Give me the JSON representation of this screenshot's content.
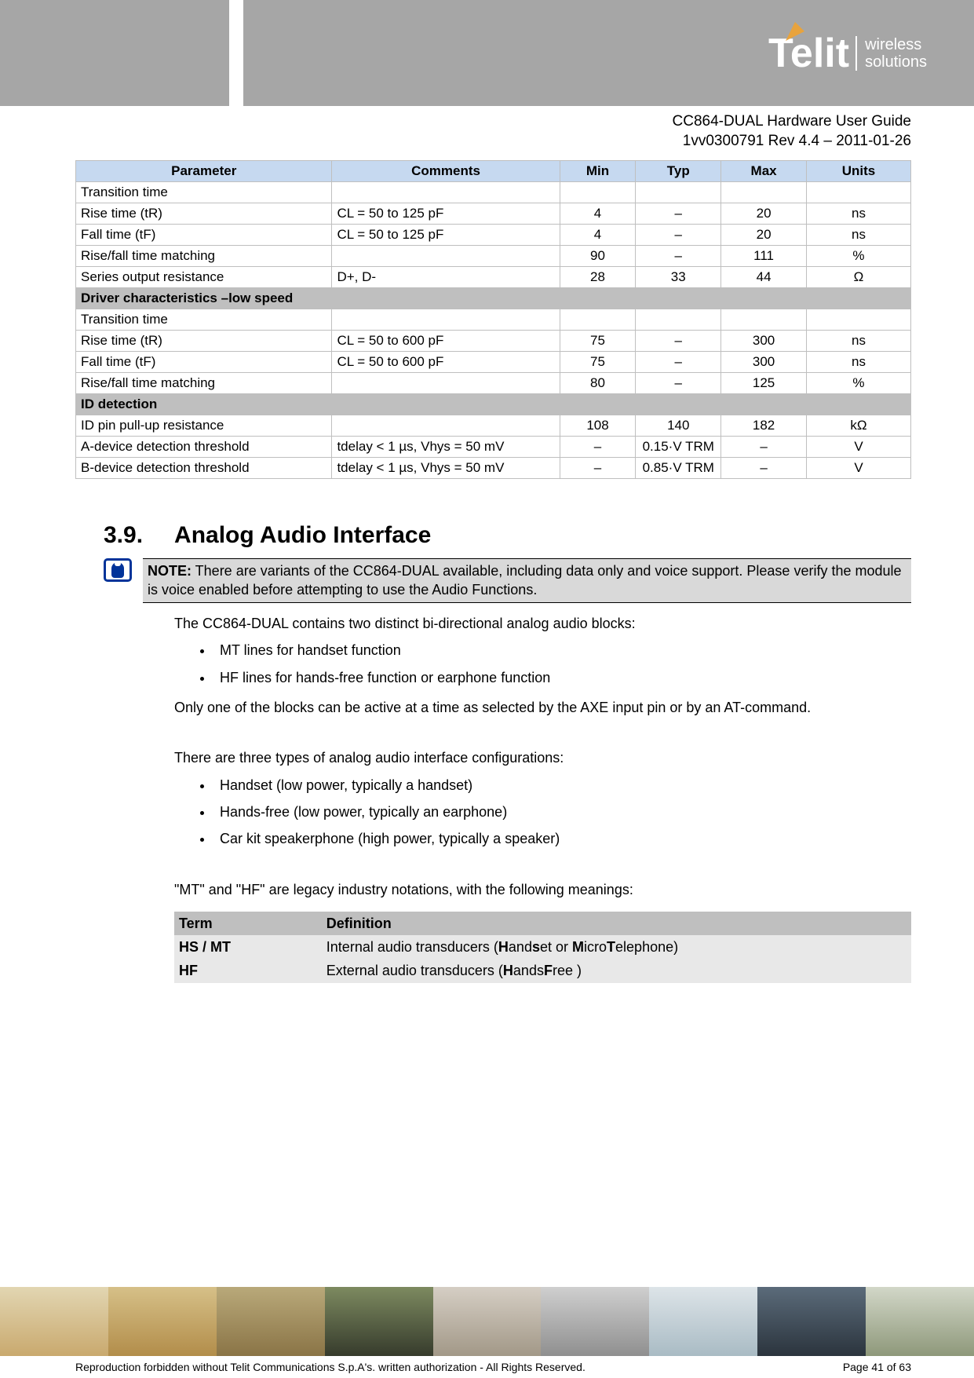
{
  "header": {
    "logo_main": "Telit",
    "logo_sub_line1": "wireless",
    "logo_sub_line2": "solutions",
    "doc_title": "CC864-DUAL Hardware User Guide",
    "doc_rev": "1vv0300791 Rev 4.4 – 2011-01-26"
  },
  "table": {
    "columns": [
      "Parameter",
      "Comments",
      "Min",
      "Typ",
      "Max",
      "Units"
    ],
    "rows": [
      {
        "type": "data",
        "cells": [
          "Transition time",
          "",
          "",
          "",
          "",
          ""
        ]
      },
      {
        "type": "data",
        "cells": [
          "Rise time (tR)",
          "CL = 50 to 125 pF",
          "4",
          "–",
          "20",
          "ns"
        ]
      },
      {
        "type": "data",
        "cells": [
          "Fall time (tF)",
          "CL = 50 to 125 pF",
          "4",
          "–",
          "20",
          "ns"
        ]
      },
      {
        "type": "data",
        "cells": [
          "Rise/fall time matching",
          "",
          "90",
          "–",
          "111",
          "%"
        ]
      },
      {
        "type": "data",
        "cells": [
          "Series output resistance",
          "D+, D-",
          "28",
          "33",
          "44",
          "Ω"
        ]
      },
      {
        "type": "section",
        "label": "Driver characteristics –low speed"
      },
      {
        "type": "data",
        "cells": [
          "Transition time",
          "",
          "",
          "",
          "",
          ""
        ]
      },
      {
        "type": "data",
        "cells": [
          "Rise time (tR)",
          "CL = 50 to 600 pF",
          "75",
          "–",
          "300",
          "ns"
        ]
      },
      {
        "type": "data",
        "cells": [
          "Fall time (tF)",
          "CL = 50 to 600 pF",
          "75",
          "–",
          "300",
          "ns"
        ]
      },
      {
        "type": "data",
        "cells": [
          "Rise/fall time matching",
          "",
          "80",
          "–",
          "125",
          "%"
        ]
      },
      {
        "type": "section",
        "label": "ID detection"
      },
      {
        "type": "data",
        "cells": [
          "ID pin pull-up resistance",
          "",
          "108",
          "140",
          "182",
          "kΩ"
        ]
      },
      {
        "type": "data",
        "cells": [
          "A-device detection threshold",
          "tdelay < 1 µs, Vhys = 50 mV",
          "–",
          "0.15·V TRM",
          "–",
          "V"
        ]
      },
      {
        "type": "data",
        "cells": [
          "B-device detection threshold",
          "tdelay < 1 µs, Vhys = 50 mV",
          "–",
          "0.85·V TRM",
          "–",
          "V"
        ]
      }
    ]
  },
  "section": {
    "number": "3.9.",
    "title": "Analog Audio Interface",
    "note_label": "NOTE:",
    "note_text": " There are variants of the CC864-DUAL available, including data only and voice support. Please verify the module is voice enabled before attempting to use the Audio Functions.",
    "p1": "The CC864-DUAL contains two distinct bi-directional analog audio blocks:",
    "list1": [
      "MT lines for handset function",
      "HF lines for hands-free function or earphone function"
    ],
    "p2": "Only one of the blocks can be active at a time as selected by the AXE input pin or by an AT-command.",
    "p3": "There are three types of analog audio interface configurations:",
    "list2": [
      "Handset (low power, typically a handset)",
      "Hands-free (low power, typically an earphone)",
      "Car kit speakerphone (high power, typically a speaker)"
    ],
    "p4": "\"MT\" and \"HF\" are legacy industry notations, with the following meanings:"
  },
  "term_table": {
    "columns": [
      "Term",
      "Definition"
    ],
    "rows": [
      {
        "term": "HS / MT",
        "prefix": "Internal audio transducers  (",
        "b1": "H",
        "t1": "and",
        "b2": "s",
        "t2": "et or ",
        "b3": "M",
        "t3": "icro",
        "b4": "T",
        "t4": "elephone)"
      },
      {
        "term": "HF",
        "prefix": "External audio transducers (",
        "b1": "H",
        "t1": "ands",
        "b2": "F",
        "t2": "ree )",
        "b3": "",
        "t3": "",
        "b4": "",
        "t4": ""
      }
    ]
  },
  "footer": {
    "copyright": "Reproduction forbidden without Telit Communications S.p.A's. written authorization - All Rights Reserved.",
    "page": "Page 41 of 63"
  }
}
